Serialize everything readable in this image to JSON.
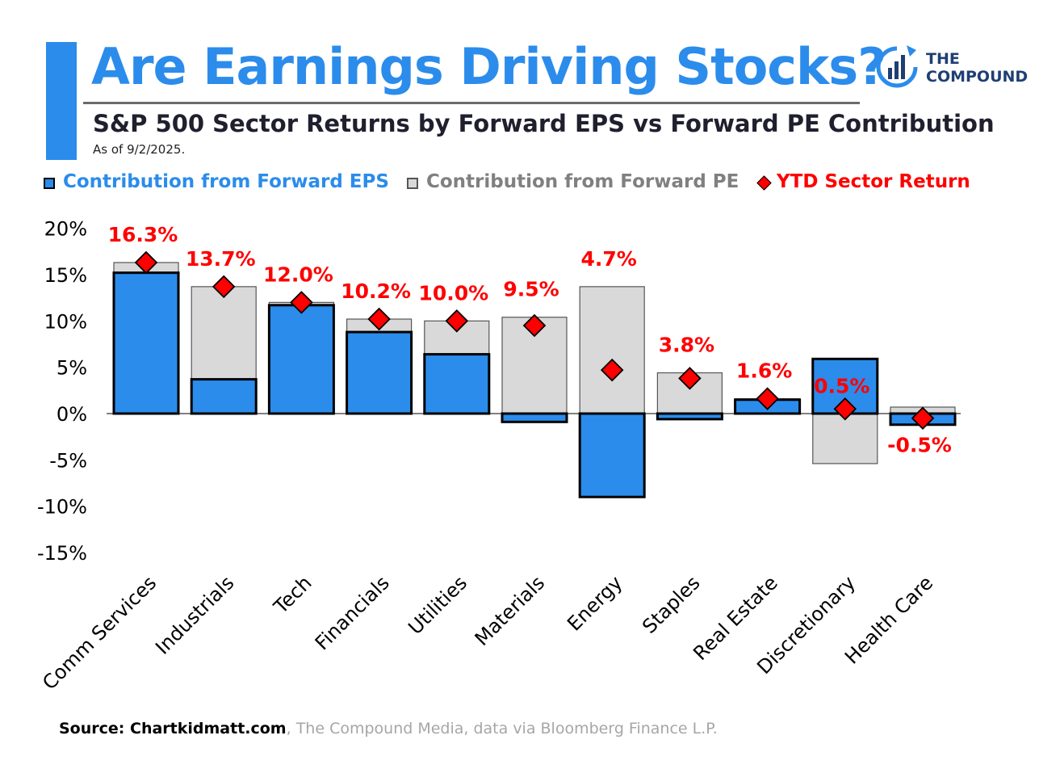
{
  "header": {
    "title": "Are Earnings Driving Stocks?",
    "subtitle": "S&P 500 Sector Returns by Forward EPS vs Forward PE Contribution",
    "as_of": "As of 9/2/2025."
  },
  "logo": {
    "line1": "THE",
    "line2": "COMPOUND",
    "icon": "bar-chart-circle-icon"
  },
  "legend": {
    "eps_label": "Contribution from Forward EPS",
    "pe_label": "Contribution from Forward PE",
    "return_label": "YTD Sector Return"
  },
  "colors": {
    "eps": "#2b8ceb",
    "pe": "#d9d9d9",
    "return": "#ff0000",
    "pe_text": "#808080"
  },
  "source": {
    "bold": "Source: Chartkidmatt.com",
    "rest": ", The Compound Media, data via Bloomberg Finance L.P."
  },
  "chart_data": {
    "type": "bar",
    "stacked": true,
    "categories": [
      "Comm Services",
      "Industrials",
      "Tech",
      "Financials",
      "Utilities",
      "Materials",
      "Energy",
      "Staples",
      "Real Estate",
      "Discretionary",
      "Health Care"
    ],
    "series": [
      {
        "name": "Contribution from Forward EPS",
        "values": [
          15.2,
          3.7,
          11.7,
          8.8,
          6.4,
          -0.9,
          -9.0,
          -0.6,
          1.5,
          5.9,
          -1.2
        ]
      },
      {
        "name": "Contribution from Forward PE",
        "values": [
          1.1,
          10.0,
          0.3,
          1.4,
          3.6,
          10.4,
          13.7,
          4.4,
          0.1,
          -5.4,
          0.7
        ]
      },
      {
        "name": "YTD Sector Return",
        "type": "scatter",
        "values": [
          16.3,
          13.7,
          12.0,
          10.2,
          10.0,
          9.5,
          4.7,
          3.8,
          1.6,
          0.5,
          -0.5
        ]
      }
    ],
    "return_labels": [
      "16.3%",
      "13.7%",
      "12.0%",
      "10.2%",
      "10.0%",
      "9.5%",
      "4.7%",
      "3.8%",
      "1.6%",
      "0.5%",
      "-0.5%"
    ],
    "yticks": [
      20,
      15,
      10,
      5,
      0,
      -5,
      -10,
      -15
    ],
    "ytick_labels": [
      "20%",
      "15%",
      "10%",
      "5%",
      "0%",
      "-5%",
      "-10%",
      "-15%"
    ],
    "ylim": [
      -15,
      20
    ],
    "grid": false,
    "legend_position": "top"
  }
}
